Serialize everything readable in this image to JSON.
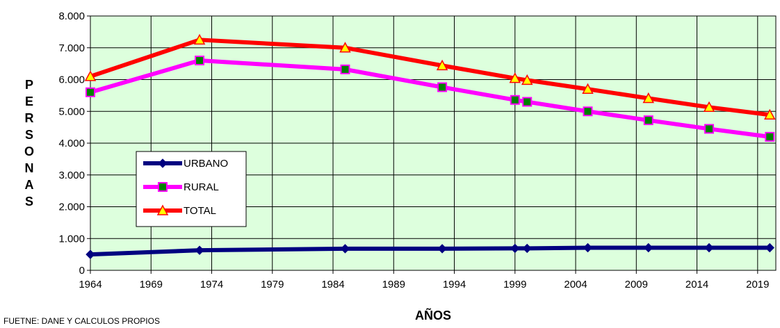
{
  "chart_data": {
    "type": "line",
    "x": [
      1964,
      1973,
      1985,
      1993,
      1999,
      2000,
      2005,
      2010,
      2015,
      2020
    ],
    "series": [
      {
        "name": "URBANO",
        "color": "#000080",
        "marker": "diamond",
        "values": [
          500,
          630,
          680,
          680,
          690,
          690,
          710,
          710,
          710,
          710
        ]
      },
      {
        "name": "RURAL",
        "color": "#FF00FF",
        "marker": "square",
        "values": [
          5600,
          6600,
          6320,
          5760,
          5360,
          5300,
          5000,
          4720,
          4450,
          4200
        ]
      },
      {
        "name": "TOTAL",
        "color": "#FF0000",
        "marker": "triangle",
        "values": [
          6100,
          7250,
          7000,
          6440,
          6040,
          5980,
          5700,
          5410,
          5130,
          4890
        ]
      }
    ],
    "x_ticks": [
      "1964",
      "1969",
      "1974",
      "1979",
      "1984",
      "1989",
      "1994",
      "1999",
      "2004",
      "2009",
      "2014",
      "2019"
    ],
    "y_ticks": [
      "0",
      "1.000",
      "2.000",
      "3.000",
      "4.000",
      "5.000",
      "6.000",
      "7.000",
      "8.000"
    ],
    "xlim": [
      1964,
      2020.5
    ],
    "ylim": [
      0,
      8000
    ],
    "xlabel": "AÑOS",
    "ylabel": "PERSONAS",
    "grid": true,
    "legend_position": "left",
    "plot_background": "#DDFFDD",
    "source": "FUETNE: DANE Y CALCULOS  PROPIOS"
  }
}
